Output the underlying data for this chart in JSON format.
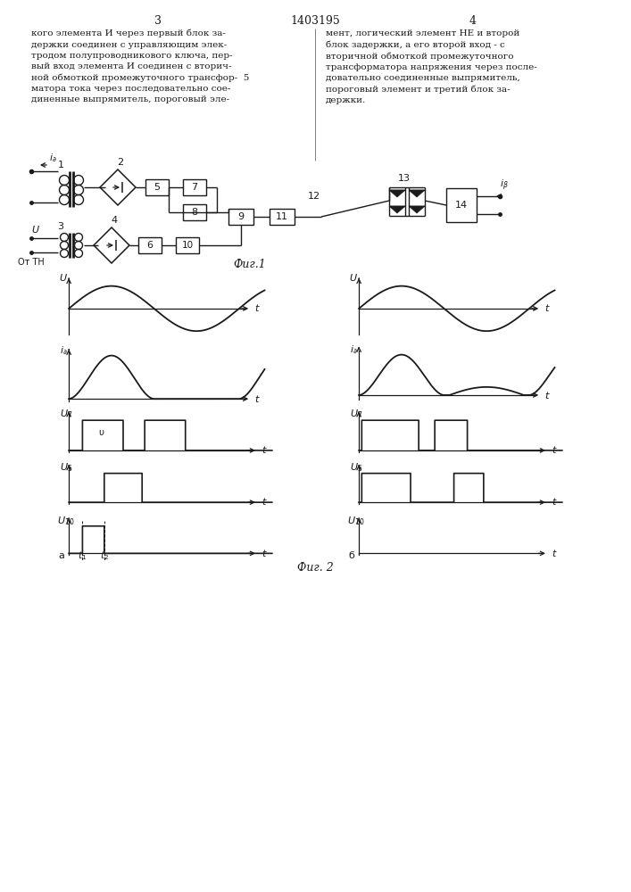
{
  "page_numbers": [
    "3",
    "4"
  ],
  "patent_number": "1403195",
  "text_left": "кого элемента И через первый блок за-\nдержки соединен с управляющим элек-\nтродом полупроводникового ключа, пер-\nвый вход элемента И соединен с вторич-\nной обмоткой промежуточного трансфор-  5\nматора тока через последовательно сое-\nдиненные выпрямитель, пороговый эле-",
  "text_right": "мент, логический элемент НЕ и второй\nблок задержки, а его второй вход - с\nвторичной обмоткой промежуточного\nтрансформатора напряжения через после-\nдовательно соединенные выпрямитель,\nпороговый элемент и третий блок за-\nдержки.",
  "fig1_label": "Фиг.1",
  "fig2_label": "Фиг. 2",
  "background": "#ffffff",
  "line_color": "#1a1a1a",
  "text_color": "#1a1a1a"
}
